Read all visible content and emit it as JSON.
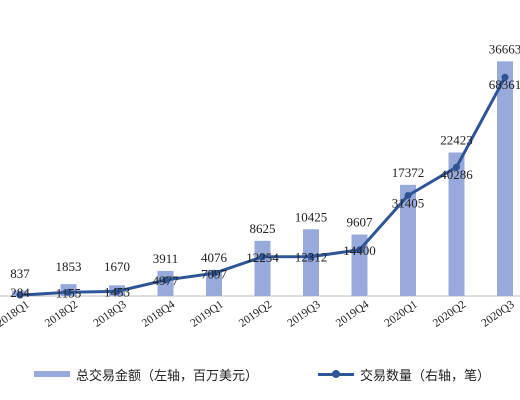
{
  "chart_data": {
    "type": "bar",
    "categories": [
      "2018Q1",
      "2018Q2",
      "2018Q3",
      "2018Q4",
      "2019Q1",
      "2019Q2",
      "2019Q3",
      "2019Q4",
      "2020Q1",
      "2020Q2",
      "2020Q3"
    ],
    "series": [
      {
        "name": "总交易金额（左轴，百万美元）",
        "type": "bar",
        "axis": "left",
        "values": [
          837,
          1853,
          1670,
          3911,
          4076,
          8625,
          10425,
          9607,
          17372,
          22423,
          36663
        ],
        "color": "#98A9DC"
      },
      {
        "name": "交易数量（右轴，笔）",
        "type": "line",
        "axis": "right",
        "values": [
          284,
          1155,
          1453,
          4977,
          7097,
          12254,
          12312,
          14400,
          31405,
          40286,
          68361
        ],
        "color": "#2F5597"
      }
    ],
    "ylim_left": [
      0,
      40000
    ],
    "ylim_right": [
      0,
      80000
    ],
    "grid": false,
    "legend_position": "bottom"
  },
  "legend": {
    "bar_label": "总交易金额（左轴，百万美元）",
    "line_label": "交易数量（右轴，笔）"
  }
}
